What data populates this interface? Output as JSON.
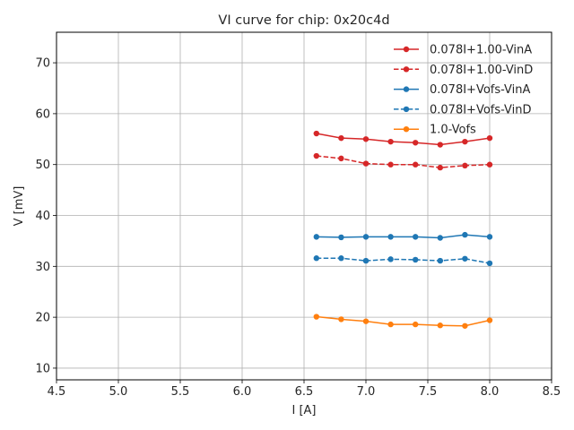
{
  "chart_data": {
    "type": "line",
    "title": "VI curve for chip: 0x20c4d",
    "xlabel": "I [A]",
    "ylabel": "V [mV]",
    "xlim": [
      4.5,
      8.5
    ],
    "ylim": [
      7.7,
      76.0
    ],
    "xticks": [
      4.5,
      5.0,
      5.5,
      6.0,
      6.5,
      7.0,
      7.5,
      8.0,
      8.5
    ],
    "xtick_labels": [
      "4.5",
      "5.0",
      "5.5",
      "6.0",
      "6.5",
      "7.0",
      "7.5",
      "8.0",
      "8.5"
    ],
    "yticks": [
      10,
      20,
      30,
      40,
      50,
      60,
      70
    ],
    "ytick_labels": [
      "10",
      "20",
      "30",
      "40",
      "50",
      "60",
      "70"
    ],
    "grid": true,
    "legend_position": "top-right",
    "x": [
      6.6,
      6.8,
      7.0,
      7.2,
      7.4,
      7.6,
      7.8,
      8.0
    ],
    "series": [
      {
        "name": "0.078I+1.00-VinA",
        "color": "#d62728",
        "linestyle": "solid",
        "values": [
          56.1,
          55.2,
          55.0,
          54.5,
          54.3,
          53.9,
          54.5,
          55.2
        ]
      },
      {
        "name": "0.078I+1.00-VinD",
        "color": "#d62728",
        "linestyle": "dashed",
        "values": [
          51.7,
          51.2,
          50.2,
          50.0,
          50.0,
          49.4,
          49.8,
          50.0
        ]
      },
      {
        "name": "0.078I+Vofs-VinA",
        "color": "#1f77b4",
        "linestyle": "solid",
        "values": [
          35.8,
          35.7,
          35.8,
          35.8,
          35.8,
          35.6,
          36.2,
          35.8
        ]
      },
      {
        "name": "0.078I+Vofs-VinD",
        "color": "#1f77b4",
        "linestyle": "dashed",
        "values": [
          31.6,
          31.6,
          31.1,
          31.4,
          31.3,
          31.1,
          31.5,
          30.6
        ]
      },
      {
        "name": "1.0-Vofs",
        "color": "#ff7f0e",
        "linestyle": "solid",
        "values": [
          20.1,
          19.6,
          19.2,
          18.6,
          18.6,
          18.4,
          18.3,
          19.4
        ]
      }
    ]
  }
}
